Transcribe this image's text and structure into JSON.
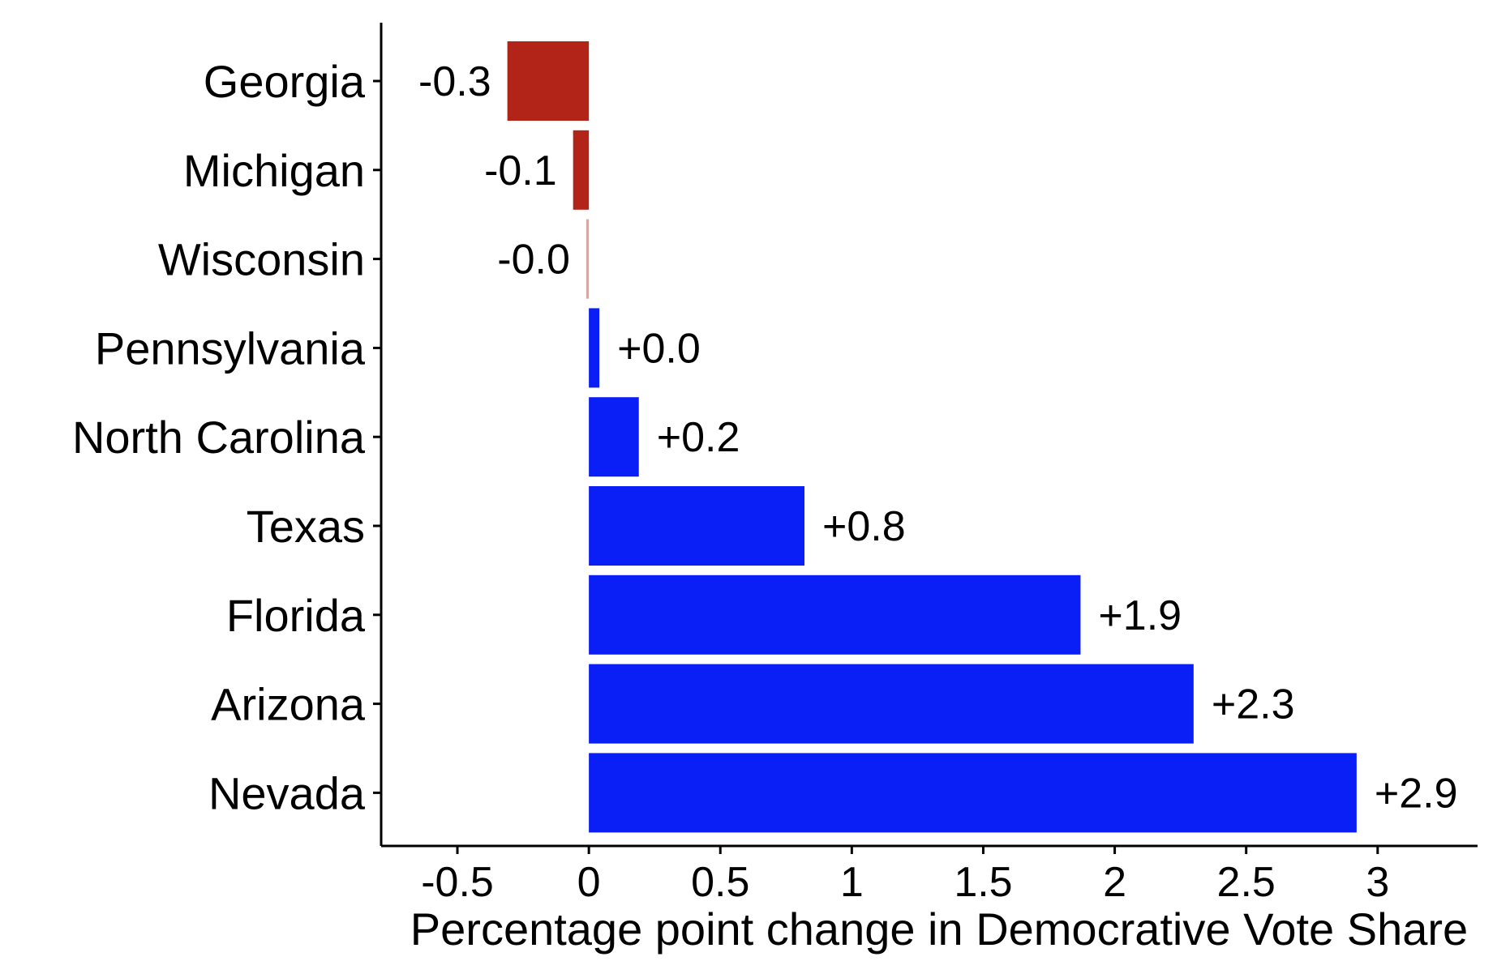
{
  "chart_data": {
    "type": "bar",
    "orientation": "horizontal",
    "categories": [
      "Georgia",
      "Michigan",
      "Wisconsin",
      "Pennsylvania",
      "North Carolina",
      "Texas",
      "Florida",
      "Arizona",
      "Nevada"
    ],
    "values": [
      -0.31,
      -0.06,
      -0.01,
      0.04,
      0.19,
      0.82,
      1.87,
      2.3,
      2.92
    ],
    "labels": [
      "-0.3",
      "-0.1",
      "-0.0",
      "+0.0",
      "+0.2",
      "+0.8",
      "+1.9",
      "+2.3",
      "+2.9"
    ],
    "colors": {
      "negative": "#b22418",
      "negative_faint": "#e8a09a",
      "positive": "#0a1ff5"
    },
    "xlabel": "Percentage point change in Democrative Vote Share",
    "ylabel": "",
    "title": "",
    "xlim": [
      -0.79,
      3.38
    ],
    "xticks": [
      -0.5,
      0,
      0.5,
      1,
      1.5,
      2,
      2.5,
      3
    ],
    "xtick_labels": [
      "-0.5",
      "0",
      "0.5",
      "1",
      "1.5",
      "2",
      "2.5",
      "3"
    ],
    "grid": false,
    "legend": "none"
  }
}
